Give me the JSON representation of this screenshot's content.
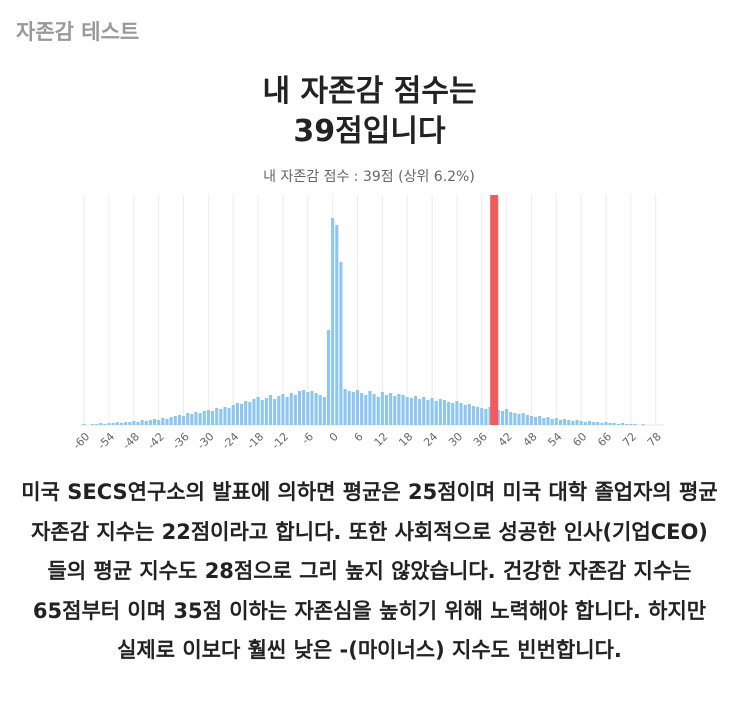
{
  "header": {
    "title": "자존감 테스트"
  },
  "result": {
    "title_lines": [
      "내 자존감 점수는",
      "39점입니다"
    ]
  },
  "chart_data": {
    "type": "histogram",
    "subtitle": "내 자존감 점수 :  39점 (상위 6.2%)",
    "x": [
      -61,
      -60,
      -59,
      -58,
      -57,
      -56,
      -55,
      -54,
      -53,
      -52,
      -51,
      -50,
      -49,
      -48,
      -47,
      -46,
      -45,
      -44,
      -43,
      -42,
      -41,
      -40,
      -39,
      -38,
      -37,
      -36,
      -35,
      -34,
      -33,
      -32,
      -31,
      -30,
      -29,
      -28,
      -27,
      -26,
      -25,
      -24,
      -23,
      -22,
      -21,
      -20,
      -19,
      -18,
      -17,
      -16,
      -15,
      -14,
      -13,
      -12,
      -11,
      -10,
      -9,
      -8,
      -7,
      -6,
      -5,
      -4,
      -3,
      -2,
      -1,
      0,
      1,
      2,
      3,
      4,
      5,
      6,
      7,
      8,
      9,
      10,
      11,
      12,
      13,
      14,
      15,
      16,
      17,
      18,
      19,
      20,
      21,
      22,
      23,
      24,
      25,
      26,
      27,
      28,
      29,
      30,
      31,
      32,
      33,
      34,
      35,
      36,
      37,
      38,
      39,
      40,
      41,
      42,
      43,
      44,
      45,
      46,
      47,
      48,
      49,
      50,
      51,
      52,
      53,
      54,
      55,
      56,
      57,
      58,
      59,
      60,
      61,
      62,
      63,
      64,
      65,
      66,
      67,
      68,
      69,
      70,
      71,
      72,
      73,
      74,
      75,
      76,
      77,
      78,
      79,
      80
    ],
    "values": [
      0,
      1,
      0,
      1,
      1,
      2,
      1,
      2,
      2,
      3,
      2,
      3,
      3,
      4,
      3,
      5,
      4,
      5,
      6,
      5,
      7,
      6,
      8,
      9,
      10,
      9,
      12,
      11,
      13,
      12,
      14,
      15,
      14,
      17,
      16,
      18,
      17,
      20,
      22,
      21,
      24,
      23,
      26,
      28,
      25,
      27,
      30,
      26,
      29,
      31,
      28,
      32,
      30,
      34,
      35,
      33,
      34,
      32,
      30,
      28,
      95,
      207,
      200,
      163,
      36,
      34,
      33,
      35,
      32,
      30,
      34,
      31,
      28,
      33,
      30,
      32,
      29,
      31,
      30,
      28,
      27,
      29,
      26,
      28,
      25,
      27,
      24,
      26,
      25,
      23,
      22,
      24,
      22,
      20,
      21,
      19,
      18,
      17,
      16,
      18,
      16,
      15,
      14,
      16,
      13,
      12,
      11,
      12,
      10,
      9,
      8,
      9,
      7,
      8,
      6,
      7,
      5,
      6,
      5,
      4,
      5,
      4,
      3,
      4,
      3,
      3,
      2,
      3,
      2,
      2,
      1,
      2,
      1,
      1,
      1,
      0,
      1,
      0,
      0,
      0,
      0,
      0
    ],
    "color": "#8ec6ef",
    "marker_x": 39,
    "marker_color": "#f25b5b",
    "xlim": [
      -61,
      80
    ],
    "ylim": [
      0,
      230
    ],
    "xticks": [
      -60,
      -54,
      -48,
      -42,
      -36,
      -30,
      -24,
      -18,
      -12,
      -6,
      0,
      6,
      12,
      18,
      24,
      30,
      36,
      42,
      48,
      54,
      60,
      66,
      72,
      78
    ],
    "grid": true
  },
  "description": "미국 SECS연구소의 발표에 의하면 평균은 25점이며 미국 대학 졸업자의 평균 자존감 지수는 22점이라고 합니다. 또한 사회적으로 성공한 인사(기업CEO)들의 평균 지수도 28점으로 그리 높지 않았습니다. 건강한 자존감 지수는 65점부터 이며 35점 이하는 자존심을 높히기 위해 노력해야 합니다. 하지만 실제로 이보다 훨씬 낮은 -(마이너스) 지수도 빈번합니다."
}
